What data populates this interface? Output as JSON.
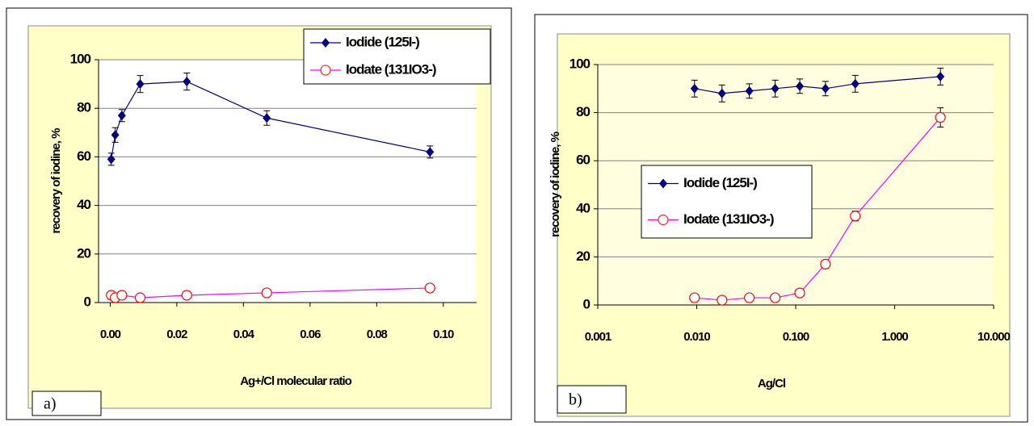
{
  "chart_data": [
    {
      "type": "line",
      "panel_label": "a)",
      "xlabel": "Ag+/Cl molecular ratio",
      "ylabel": "recovery of iodine, %",
      "x": [
        0.0003,
        0.0015,
        0.0035,
        0.009,
        0.023,
        0.047,
        0.096
      ],
      "series": [
        {
          "name": "Iodide (125I-)",
          "color": "#000080",
          "marker": "diamond",
          "values": [
            59,
            69,
            77,
            90,
            91,
            76,
            62
          ],
          "errors": [
            2.5,
            3,
            2.5,
            3.5,
            3.5,
            3,
            2.5
          ]
        },
        {
          "name": "Iodate (131IO3-)",
          "color": "#ff00ff",
          "marker": "circle",
          "values": [
            3,
            2,
            3,
            2,
            3,
            4,
            6
          ],
          "errors": [
            0,
            0,
            0,
            0,
            0,
            0,
            0
          ]
        }
      ],
      "xlim": [
        -0.0035,
        0.11
      ],
      "ylim": [
        0,
        100
      ],
      "xticks": [
        {
          "value": 0,
          "label": "0.00"
        },
        {
          "value": 0.02,
          "label": "0.02"
        },
        {
          "value": 0.04,
          "label": "0.04"
        },
        {
          "value": 0.06,
          "label": "0.06"
        },
        {
          "value": 0.08,
          "label": "0.08"
        },
        {
          "value": 0.1,
          "label": "0.10"
        }
      ],
      "yticks": [
        0,
        20,
        40,
        60,
        80,
        100
      ],
      "xscale": "linear",
      "grid": true,
      "legend_position": "upper right"
    },
    {
      "type": "line",
      "panel_label": "b)",
      "xlabel": "Ag/Cl",
      "ylabel": "recovery of iodine, %",
      "x": [
        0.0095,
        0.018,
        0.034,
        0.062,
        0.11,
        0.2,
        0.4,
        2.9
      ],
      "series": [
        {
          "name": "Iodide (125I-)",
          "color": "#000080",
          "marker": "diamond",
          "values": [
            90,
            88,
            89,
            90,
            91,
            90,
            92,
            95
          ],
          "errors": [
            3.5,
            3.5,
            3,
            3.5,
            3,
            3,
            3.5,
            3.5
          ]
        },
        {
          "name": "Iodate (131IO3-)",
          "color": "#ff00ff",
          "marker": "circle",
          "values": [
            3,
            2,
            3,
            3,
            5,
            17,
            37,
            78
          ],
          "errors": [
            1,
            1,
            1,
            1,
            1,
            1.5,
            2,
            4
          ]
        }
      ],
      "xlim": [
        0.001,
        10
      ],
      "ylim": [
        0,
        100
      ],
      "xticks": [
        0.001,
        {
          "value": 0.01,
          "label": "0.010"
        },
        {
          "value": 0.1,
          "label": "0.100"
        },
        {
          "value": 1,
          "label": "1.000"
        },
        {
          "value": 10,
          "label": "10.000"
        }
      ],
      "yticks": [
        0,
        20,
        40,
        60,
        80,
        100
      ],
      "xscale": "log",
      "grid": true,
      "legend_position": "center left"
    }
  ]
}
